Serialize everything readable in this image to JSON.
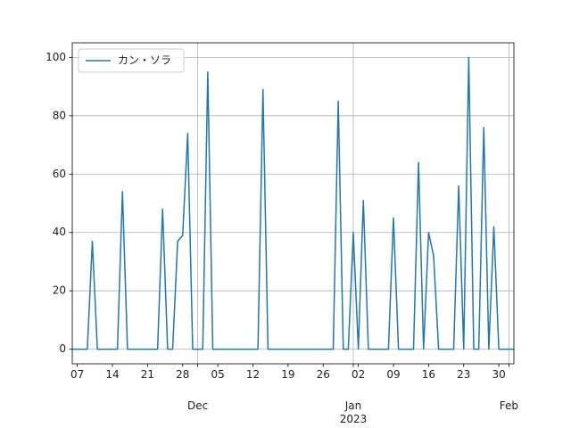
{
  "chart_data": {
    "type": "line",
    "x": [
      "2022-11-06",
      "2022-11-07",
      "2022-11-08",
      "2022-11-09",
      "2022-11-10",
      "2022-11-11",
      "2022-11-12",
      "2022-11-13",
      "2022-11-14",
      "2022-11-15",
      "2022-11-16",
      "2022-11-17",
      "2022-11-18",
      "2022-11-19",
      "2022-11-20",
      "2022-11-21",
      "2022-11-22",
      "2022-11-23",
      "2022-11-24",
      "2022-11-25",
      "2022-11-26",
      "2022-11-27",
      "2022-11-28",
      "2022-11-29",
      "2022-11-30",
      "2022-12-01",
      "2022-12-02",
      "2022-12-03",
      "2022-12-04",
      "2022-12-05",
      "2022-12-06",
      "2022-12-07",
      "2022-12-08",
      "2022-12-09",
      "2022-12-10",
      "2022-12-11",
      "2022-12-12",
      "2022-12-13",
      "2022-12-14",
      "2022-12-15",
      "2022-12-16",
      "2022-12-17",
      "2022-12-18",
      "2022-12-19",
      "2022-12-20",
      "2022-12-21",
      "2022-12-22",
      "2022-12-23",
      "2022-12-24",
      "2022-12-25",
      "2022-12-26",
      "2022-12-27",
      "2022-12-28",
      "2022-12-29",
      "2022-12-30",
      "2022-12-31",
      "2023-01-01",
      "2023-01-02",
      "2023-01-03",
      "2023-01-04",
      "2023-01-05",
      "2023-01-06",
      "2023-01-07",
      "2023-01-08",
      "2023-01-09",
      "2023-01-10",
      "2023-01-11",
      "2023-01-12",
      "2023-01-13",
      "2023-01-14",
      "2023-01-15",
      "2023-01-16",
      "2023-01-17",
      "2023-01-18",
      "2023-01-19",
      "2023-01-20",
      "2023-01-21",
      "2023-01-22",
      "2023-01-23",
      "2023-01-24",
      "2023-01-25",
      "2023-01-26",
      "2023-01-27",
      "2023-01-28",
      "2023-01-29",
      "2023-01-30",
      "2023-01-31",
      "2023-02-01",
      "2023-02-02"
    ],
    "series": [
      {
        "name": "カン・ソラ",
        "color": "#1f77b4",
        "values": [
          0,
          0,
          0,
          0,
          37,
          0,
          0,
          0,
          0,
          0,
          54,
          0,
          0,
          0,
          0,
          0,
          0,
          0,
          48,
          0,
          0,
          37,
          39,
          74,
          0,
          0,
          0,
          95,
          0,
          0,
          0,
          0,
          0,
          0,
          0,
          0,
          0,
          0,
          89,
          0,
          0,
          0,
          0,
          0,
          0,
          0,
          0,
          0,
          0,
          0,
          0,
          0,
          0,
          85,
          0,
          0,
          40,
          0,
          51,
          0,
          0,
          0,
          0,
          0,
          45,
          0,
          0,
          0,
          0,
          64,
          0,
          40,
          32,
          0,
          0,
          0,
          0,
          56,
          0,
          100,
          0,
          0,
          76,
          0,
          42,
          0,
          0,
          0,
          0
        ]
      }
    ],
    "xlim": [
      "2022-11-06",
      "2023-02-02"
    ],
    "ylim": [
      -5,
      105
    ],
    "yticks": [
      0,
      20,
      40,
      60,
      80,
      100
    ],
    "xticks": [
      {
        "value": "2022-12-01",
        "label": "Dec"
      },
      {
        "value": "2023-01-01",
        "label": "Jan\n2023"
      },
      {
        "value": "2023-02-01",
        "label": "Feb"
      }
    ],
    "xticks_minor": [
      {
        "value": "2022-11-07",
        "label": "07"
      },
      {
        "value": "2022-11-14",
        "label": "14"
      },
      {
        "value": "2022-11-21",
        "label": "21"
      },
      {
        "value": "2022-11-28",
        "label": "28"
      },
      {
        "value": "2022-12-05",
        "label": "05"
      },
      {
        "value": "2022-12-12",
        "label": "12"
      },
      {
        "value": "2022-12-19",
        "label": "19"
      },
      {
        "value": "2022-12-26",
        "label": "26"
      },
      {
        "value": "2023-01-02",
        "label": "02"
      },
      {
        "value": "2023-01-09",
        "label": "09"
      },
      {
        "value": "2023-01-16",
        "label": "16"
      },
      {
        "value": "2023-01-23",
        "label": "23"
      },
      {
        "value": "2023-01-30",
        "label": "30"
      }
    ],
    "grid": true,
    "legend": "upper left"
  }
}
